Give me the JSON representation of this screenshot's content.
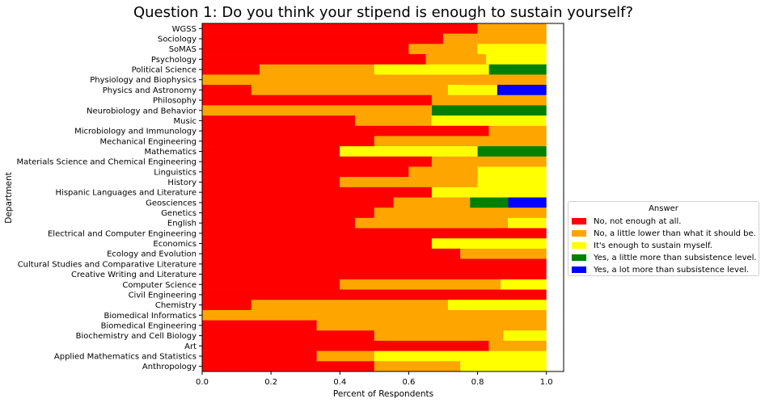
{
  "chart_data": {
    "type": "bar",
    "orientation": "horizontal-stacked",
    "title": "Question 1: Do you think your stipend is enough to sustain yourself?",
    "xlabel": "Percent of Respondents",
    "ylabel": "Department",
    "xlim": [
      0,
      1.05
    ],
    "xticks": [
      "0.0",
      "0.2",
      "0.4",
      "0.6",
      "0.8",
      "1.0"
    ],
    "grid": false,
    "legend_title": "Answer",
    "legend_position": "center-right-outside",
    "categories": [
      "WGSS",
      "Sociology",
      "SoMAS",
      "Psychology",
      "Political Science",
      "Physiology and Biophysics",
      "Physics and Astronomy",
      "Philosophy",
      "Neurobiology and Behavior",
      "Music",
      "Microbiology and Immunology",
      "Mechanical Engineering",
      "Mathematics",
      "Materials Science and Chemical Engineering",
      "Linguistics",
      "History",
      "Hispanic Languages and Literature",
      "Geosciences",
      "Genetics",
      "English",
      "Electrical and Computer Engineering",
      "Economics",
      "Ecology and Evolution",
      "Cultural Studies and Comparative Literature",
      "Creative Writing and Literature",
      "Computer Science",
      "Civil Engineering",
      "Chemistry",
      "Biomedical Informatics",
      "Biomedical Engineering",
      "Biochemistry and Cell Biology",
      "Art",
      "Applied Mathematics and Statistics",
      "Anthropology"
    ],
    "series": [
      {
        "name": "No, not enough at all.",
        "color": "#ff0000",
        "values": [
          0.8,
          0.7,
          0.6,
          0.65,
          0.167,
          0,
          0.143,
          0.667,
          0,
          0.444,
          0.833,
          0.5,
          0.4,
          0.667,
          0.6,
          0.4,
          0.667,
          0.556,
          0.5,
          0.444,
          1.0,
          0.667,
          0.75,
          1.0,
          1.0,
          0.4,
          1.0,
          0.143,
          0,
          0.333,
          0.5,
          0.833,
          0.333,
          0.5
        ]
      },
      {
        "name": "No, a little lower than what it should be.",
        "color": "#ffa500",
        "values": [
          0.2,
          0.3,
          0.2,
          0.175,
          0.333,
          1.0,
          0.571,
          0.333,
          0.667,
          0.222,
          0.167,
          0.5,
          0,
          0.333,
          0.2,
          0.4,
          0,
          0.222,
          0.5,
          0.444,
          0,
          0,
          0.25,
          0,
          0,
          0.467,
          0,
          0.571,
          1.0,
          0.667,
          0.375,
          0.167,
          0.167,
          0.25
        ]
      },
      {
        "name": "It's enough to sustain myself.",
        "color": "#ffff00",
        "values": [
          0,
          0,
          0.2,
          0.175,
          0.333,
          0,
          0.143,
          0,
          0,
          0.333,
          0,
          0,
          0.4,
          0,
          0.2,
          0.2,
          0.333,
          0,
          0,
          0.111,
          0,
          0.333,
          0,
          0,
          0,
          0.133,
          0,
          0.286,
          0,
          0,
          0.125,
          0,
          0.5,
          0.25
        ]
      },
      {
        "name": "Yes, a little more than subsistence level.",
        "color": "#008000",
        "values": [
          0,
          0,
          0,
          0,
          0.167,
          0,
          0,
          0,
          0.333,
          0,
          0,
          0,
          0.2,
          0,
          0,
          0,
          0,
          0.111,
          0,
          0,
          0,
          0,
          0,
          0,
          0,
          0,
          0,
          0,
          0,
          0,
          0,
          0,
          0,
          0
        ]
      },
      {
        "name": "Yes, a lot more than subsistence level.",
        "color": "#0000ff",
        "values": [
          0,
          0,
          0,
          0,
          0,
          0,
          0.143,
          0,
          0,
          0,
          0,
          0,
          0,
          0,
          0,
          0,
          0,
          0.111,
          0,
          0,
          0,
          0,
          0,
          0,
          0,
          0,
          0,
          0,
          0,
          0,
          0,
          0,
          0,
          0
        ]
      }
    ]
  }
}
